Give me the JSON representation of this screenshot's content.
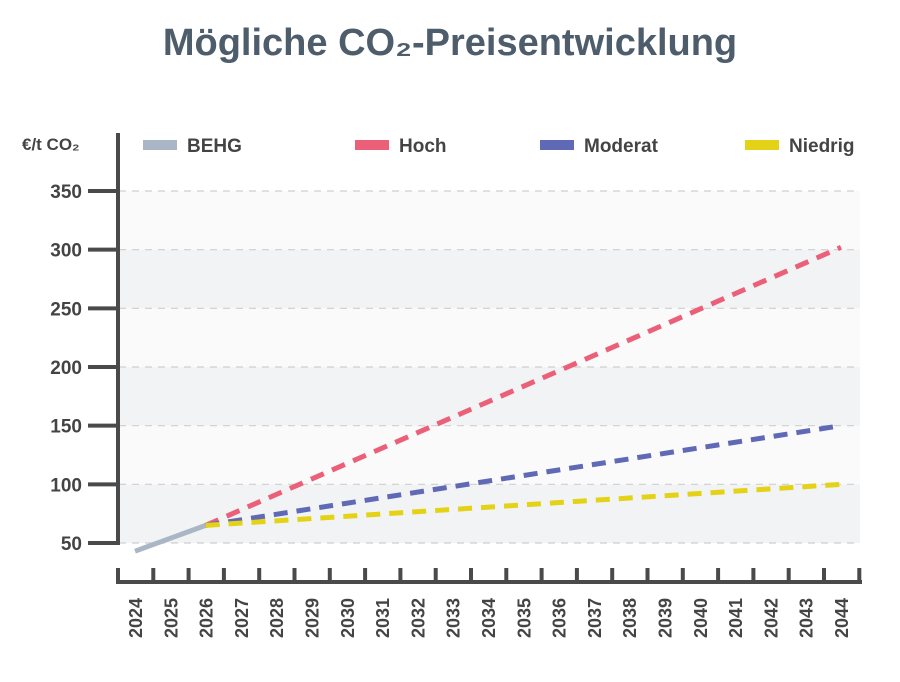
{
  "chart_data": {
    "type": "line",
    "title": "Mögliche CO₂-Preisentwicklung",
    "ylabel": "€/t CO₂",
    "xlabel": "",
    "ylim": [
      50,
      350
    ],
    "yticks": [
      50,
      100,
      150,
      200,
      250,
      300,
      350
    ],
    "x": [
      2024,
      2025,
      2026,
      2027,
      2028,
      2029,
      2030,
      2031,
      2032,
      2033,
      2034,
      2035,
      2036,
      2037,
      2038,
      2039,
      2040,
      2041,
      2042,
      2043,
      2044
    ],
    "grid": true,
    "legend_position": "top",
    "series": [
      {
        "name": "BEHG",
        "color": "#aab6c6",
        "style": "solid",
        "x": [
          2024,
          2025,
          2026
        ],
        "values": [
          43,
          54,
          65
        ]
      },
      {
        "name": "Hoch",
        "color": "#ec5f78",
        "style": "dashed",
        "x": [
          2026,
          2044
        ],
        "values": [
          65,
          302
        ]
      },
      {
        "name": "Moderat",
        "color": "#5f69b5",
        "style": "dashed",
        "x": [
          2026,
          2044
        ],
        "values": [
          65,
          150
        ]
      },
      {
        "name": "Niedrig",
        "color": "#e3d216",
        "style": "dashed",
        "x": [
          2026,
          2044
        ],
        "values": [
          65,
          100
        ]
      }
    ]
  }
}
